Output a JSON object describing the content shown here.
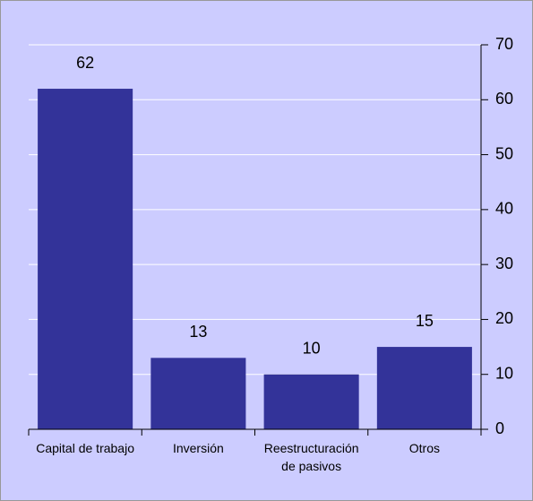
{
  "chart_data": {
    "type": "bar",
    "categories": [
      "Capital de trabajo",
      "Inversión",
      "Reestructuración de pasivos",
      "Otros"
    ],
    "values": [
      62,
      13,
      10,
      15
    ],
    "color": "#333399",
    "ylim": [
      0,
      70
    ],
    "yticks": [
      0,
      10,
      20,
      30,
      40,
      50,
      60,
      70
    ],
    "grid": true,
    "y_axis_side": "right",
    "background": "#ccccff"
  }
}
